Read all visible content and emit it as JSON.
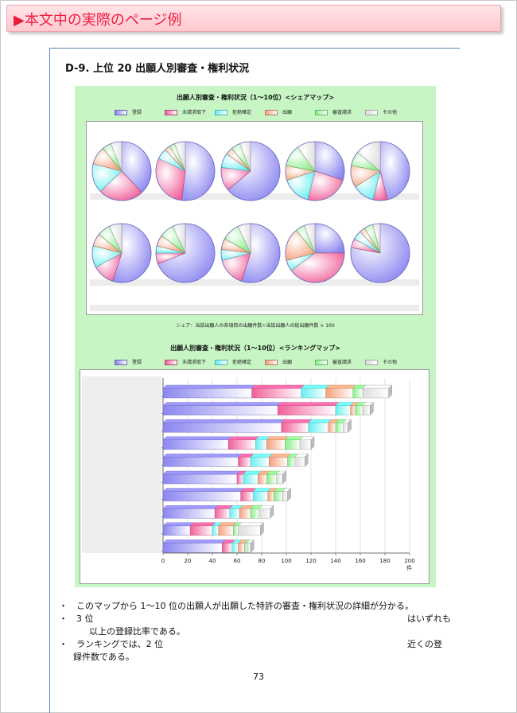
{
  "banner": {
    "title": "▶本文中の実際のページ例"
  },
  "section": {
    "title": "D-9.  上位 20 出願人別審査・権利状況"
  },
  "legend_items": [
    {
      "label": "登録",
      "color": "#8b86f0"
    },
    {
      "label": "未請求取下",
      "color": "#f0609a"
    },
    {
      "label": "拒絶確定",
      "color": "#66eef0"
    },
    {
      "label": "出願",
      "color": "#f7a07c"
    },
    {
      "label": "審査請求",
      "color": "#88ee88"
    },
    {
      "label": "その他",
      "color": "#dddddd"
    }
  ],
  "pie_chart": {
    "title": "出願人別審査・権利状況（1～10位）<シェアマップ>",
    "note": "シェア：当該出願人の各項目の出願件数÷当該出願人の総出願件数 × 100"
  },
  "bar_chart": {
    "title": "出願人別審査・権利状況（1～10位）<ランキングマップ>",
    "x_unit": "件",
    "x_ticks": [
      "0",
      "20",
      "40",
      "60",
      "80",
      "100",
      "120",
      "140",
      "160",
      "180",
      "200"
    ]
  },
  "chart_data": [
    {
      "type": "pie",
      "title": "出願人別審査・権利状況（1～10位）<シェアマップ>",
      "legend": [
        "登録",
        "未請求取下",
        "拒絶確定",
        "出願",
        "審査請求",
        "その他"
      ],
      "legend_position": "top",
      "series": [
        {
          "values": [
            38,
            25,
            16,
            10,
            5,
            6
          ]
        },
        {
          "values": [
            52,
            30,
            6,
            3,
            3,
            6
          ]
        },
        {
          "values": [
            64,
            13,
            8,
            4,
            5,
            6
          ]
        },
        {
          "values": [
            30,
            24,
            16,
            8,
            12,
            10
          ]
        },
        {
          "values": [
            46,
            8,
            12,
            12,
            8,
            14
          ]
        },
        {
          "values": [
            55,
            12,
            12,
            7,
            7,
            7
          ]
        },
        {
          "values": [
            69,
            6,
            4,
            6,
            8,
            7
          ]
        },
        {
          "values": [
            55,
            16,
            6,
            6,
            10,
            7
          ]
        },
        {
          "values": [
            25,
            40,
            6,
            18,
            5,
            6
          ]
        },
        {
          "values": [
            78,
            5,
            5,
            3,
            5,
            4
          ]
        }
      ]
    },
    {
      "type": "bar",
      "orientation": "horizontal",
      "stacked": true,
      "title": "出願人別審査・権利状況（1～10位）<ランキングマップ>",
      "xlabel": "件",
      "xlim": [
        0,
        200
      ],
      "grid": true,
      "legend_position": "top",
      "series": [
        {
          "name": "登録",
          "values": [
            72,
            93,
            96,
            53,
            61,
            60,
            63,
            42,
            22,
            48
          ]
        },
        {
          "name": "未請求取下",
          "values": [
            40,
            47,
            22,
            22,
            10,
            5,
            10,
            12,
            18,
            8
          ]
        },
        {
          "name": "拒絶確定",
          "values": [
            20,
            12,
            16,
            9,
            15,
            12,
            12,
            8,
            5,
            5
          ]
        },
        {
          "name": "出願",
          "values": [
            22,
            4,
            6,
            15,
            15,
            7,
            5,
            9,
            12,
            5
          ]
        },
        {
          "name": "審査請求",
          "values": [
            8,
            6,
            6,
            12,
            6,
            8,
            7,
            7,
            4,
            2
          ]
        },
        {
          "name": "その他",
          "values": [
            21,
            6,
            4,
            9,
            8,
            5,
            4,
            9,
            18,
            3
          ]
        }
      ]
    }
  ],
  "bullets": [
    {
      "text": "・　このマップから 1～10 位の出願人が出願した特許の審査・権利状況の詳細が分かる。"
    },
    {
      "text": "・　3 位"
    },
    {
      "text": "はいずれも"
    },
    {
      "text": "以上の登録比率である。"
    },
    {
      "text": "・　ランキングでは、2 位"
    },
    {
      "text": "近くの登"
    },
    {
      "text": "録件数である。"
    }
  ],
  "page_number": "73"
}
